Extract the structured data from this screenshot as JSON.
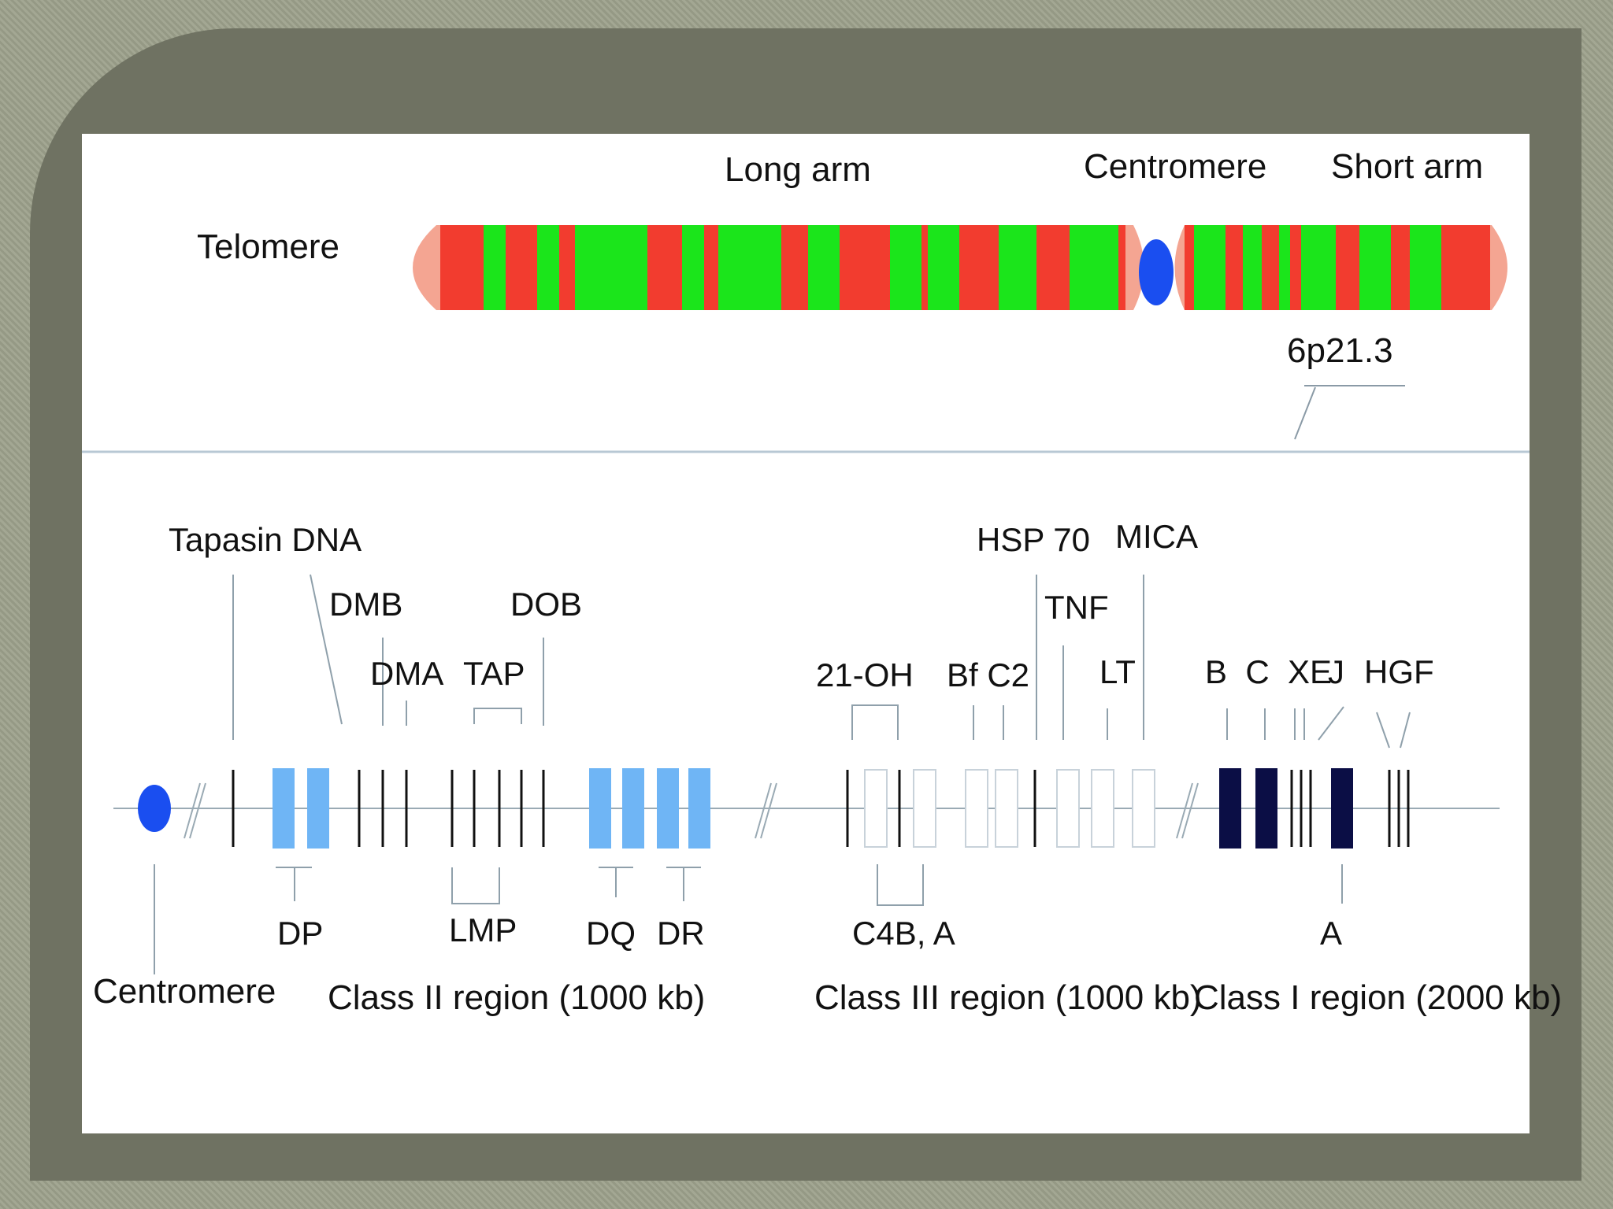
{
  "chromosome": {
    "title_long_arm": "Long arm",
    "title_centromere": "Centromere",
    "title_short_arm": "Short arm",
    "telomere": "Telomere",
    "band": "6p21.3",
    "colors": {
      "red": "#f23c2f",
      "green": "#1be51b",
      "pink": "#f4a592",
      "centromere": "#1a4ef0"
    }
  },
  "map": {
    "genes_top": {
      "tapasin_dna": "Tapasin DNA",
      "dmb": "DMB",
      "dma": "DMA",
      "tap": "TAP",
      "dob": "DOB",
      "oh21": "21-OH",
      "bf_c2": "Bf C2",
      "hsp70": "HSP 70",
      "tnf": "TNF",
      "mica": "MICA",
      "lt": "LT",
      "bcxe": "B  C  XE",
      "j": "J",
      "hgf": "HGF"
    },
    "genes_bottom": {
      "dp": "DP",
      "lmp": "LMP",
      "dq": "DQ",
      "dr": "DR",
      "c4b_a": "C4B, A",
      "a": "A"
    },
    "regions": {
      "centromere": "Centromere",
      "class2": "Class II region (1000 kb)",
      "class3": "Class III region (1000 kb)",
      "class1": "Class I region (2000 kb)"
    },
    "colors": {
      "class2": "#6fb5f5",
      "class3": "#ffffff",
      "class1": "#0b0e45",
      "centromere": "#1a4ef0"
    }
  }
}
